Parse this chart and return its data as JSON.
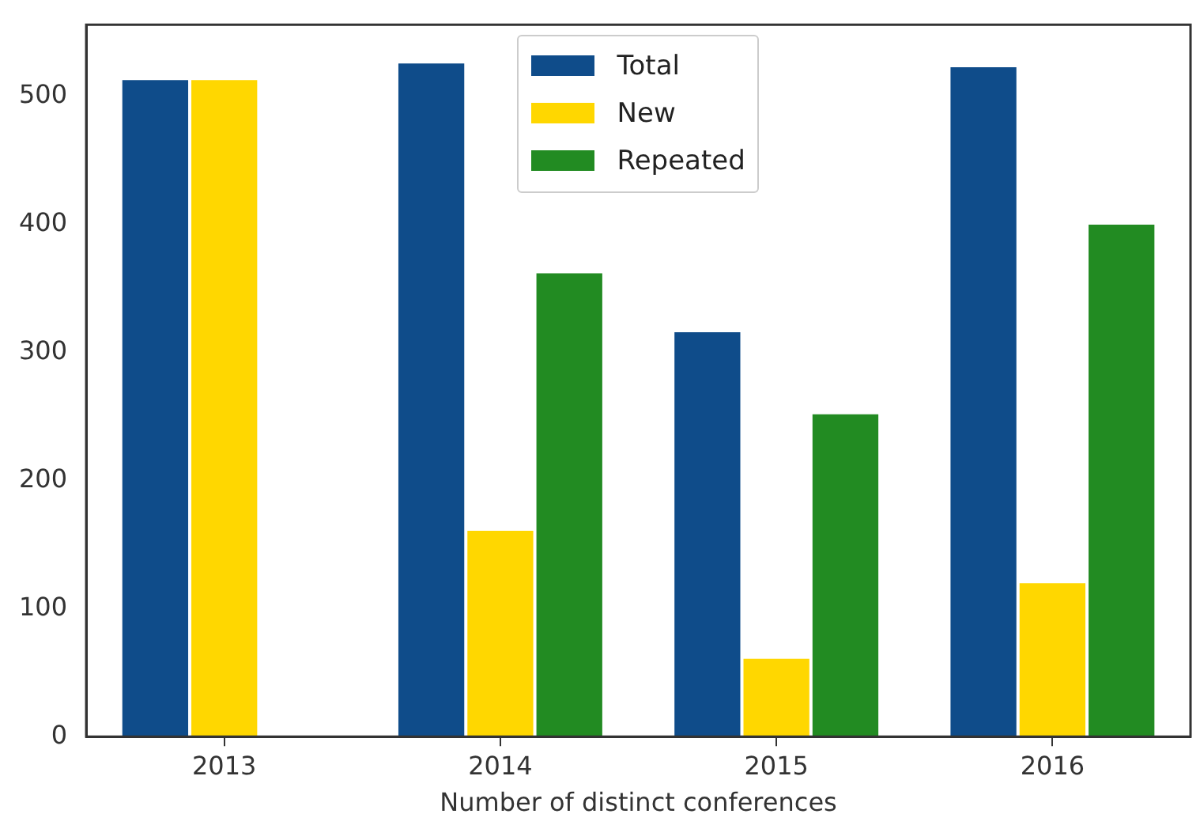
{
  "chart_data": {
    "type": "bar",
    "xlabel": "Number of distinct conferences",
    "categories": [
      "2013",
      "2014",
      "2015",
      "2016"
    ],
    "series": [
      {
        "name": "Total",
        "color": "#0f4c8a",
        "values": [
          514,
          527,
          317,
          524
        ]
      },
      {
        "name": "New",
        "color": "#ffd700",
        "values": [
          514,
          162,
          62,
          121
        ]
      },
      {
        "name": "Repeated",
        "color": "#228b22",
        "values": [
          0,
          363,
          253,
          401
        ]
      }
    ],
    "ylim": [
      0,
      556
    ],
    "yticks": [
      0,
      100,
      200,
      300,
      400,
      500
    ],
    "grid": false,
    "legend": "top"
  }
}
